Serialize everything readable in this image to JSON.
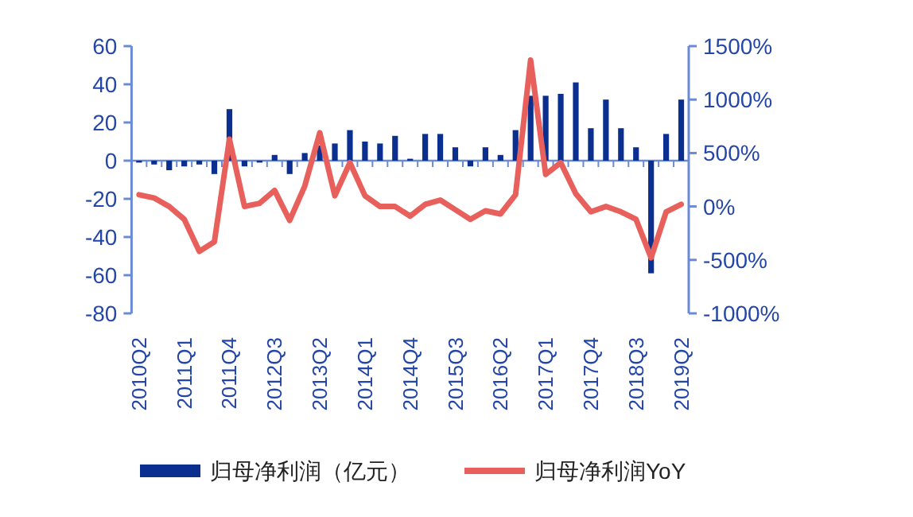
{
  "chart_data": {
    "type": "bar",
    "categories": [
      "2010Q2",
      null,
      null,
      "2011Q1",
      null,
      null,
      "2011Q4",
      null,
      null,
      "2012Q3",
      null,
      null,
      "2013Q2",
      null,
      null,
      "2014Q1",
      null,
      null,
      "2014Q4",
      null,
      null,
      "2015Q3",
      null,
      null,
      "2016Q2",
      null,
      null,
      "2017Q1",
      null,
      null,
      "2017Q4",
      null,
      null,
      "2018Q3",
      null,
      null,
      "2019Q2"
    ],
    "series": [
      {
        "name": "归母净利润（亿元）",
        "color": "#0a2f8f",
        "values": [
          -1,
          -2,
          -5,
          -3,
          -2,
          -7,
          27,
          -3,
          -1,
          3,
          -7,
          4,
          8,
          9,
          16,
          10,
          9,
          13,
          1,
          14,
          14,
          7,
          -3,
          7,
          3,
          16,
          34,
          34,
          35,
          41,
          17,
          32,
          17,
          7,
          -59,
          14,
          32
        ]
      },
      {
        "name": "归母净利润YoY",
        "type": "line",
        "axis": "y2",
        "color": "#e8605c",
        "values": [
          110,
          80,
          0,
          -120,
          -420,
          -330,
          630,
          0,
          30,
          150,
          -130,
          190,
          690,
          100,
          410,
          100,
          0,
          0,
          -90,
          20,
          60,
          -30,
          -120,
          -40,
          -70,
          110,
          1370,
          300,
          410,
          120,
          -50,
          0,
          -50,
          -120,
          -480,
          -50,
          20
        ]
      }
    ],
    "ylim": [
      -80,
      60
    ],
    "yticks": [
      -80,
      -60,
      -40,
      -20,
      0,
      20,
      40,
      60
    ],
    "y2lim": [
      -1000,
      1500
    ],
    "y2ticks": [
      {
        "value": -1000,
        "label": "-1000%"
      },
      {
        "value": -500,
        "label": "-500%"
      },
      {
        "value": 0,
        "label": "0%"
      },
      {
        "value": 500,
        "label": "500%"
      },
      {
        "value": 1000,
        "label": "1000%"
      },
      {
        "value": 1500,
        "label": "1500%"
      }
    ],
    "ref_lines": [
      {
        "axis": "y",
        "value": 0,
        "color": "#6a8ad6"
      }
    ],
    "legend": "bottom",
    "grid": false
  }
}
